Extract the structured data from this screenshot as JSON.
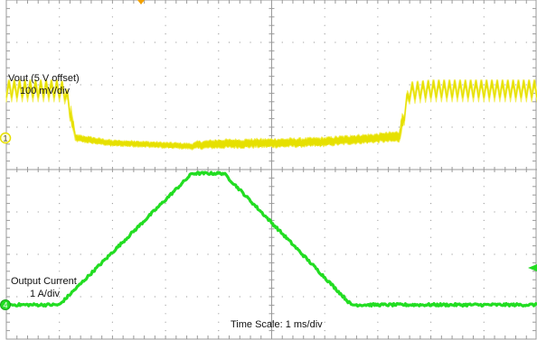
{
  "labels": {
    "vout_title": "Vout (5 V offset)",
    "vout_scale": "100 mV/div",
    "iout_title": "Output Current",
    "iout_scale": "1 A/div",
    "time_scale": "Time Scale: 1 ms/div"
  },
  "markers": {
    "ch1": "1",
    "ch4": "4"
  },
  "colors": {
    "vout": "#e6e000",
    "vout_edge": "#f3ee58",
    "iout": "#22dd22",
    "grid": "#9a9a9a",
    "trigger": "#f2a000"
  },
  "chart_data": {
    "type": "line",
    "grid": true,
    "divisions": {
      "x": 10,
      "y": 8
    },
    "series": [
      {
        "name": "Vout (5 V offset)",
        "channel": 1,
        "x_ms": [
          0.0,
          1.0,
          1.1,
          1.2,
          1.3,
          2.0,
          2.5,
          3.0,
          3.2,
          3.4,
          3.5,
          3.6,
          4.0,
          4.5,
          5.0,
          5.5,
          6.0,
          6.5,
          7.0,
          7.4,
          7.5,
          7.6,
          8.0,
          10.0
        ],
        "center_offset_mV": [
          115,
          115,
          110,
          70,
          0,
          -12,
          -14,
          -17,
          -18,
          -19,
          -20,
          -17,
          -14,
          -13,
          -12,
          -11,
          -9,
          -4,
          0,
          3,
          60,
          110,
          115,
          115
        ],
        "band_pp_mV": [
          40,
          40,
          40,
          40,
          14,
          12,
          12,
          12,
          12,
          12,
          12,
          16,
          18,
          18,
          18,
          18,
          18,
          18,
          18,
          22,
          40,
          40,
          40,
          40
        ]
      },
      {
        "name": "Output Current",
        "channel": 4,
        "x_ms": [
          0.0,
          1.0,
          3.5,
          4.1,
          6.5,
          10.0
        ],
        "y_A": [
          0.0,
          0.0,
          3.1,
          3.1,
          0.0,
          0.0
        ]
      }
    ]
  }
}
